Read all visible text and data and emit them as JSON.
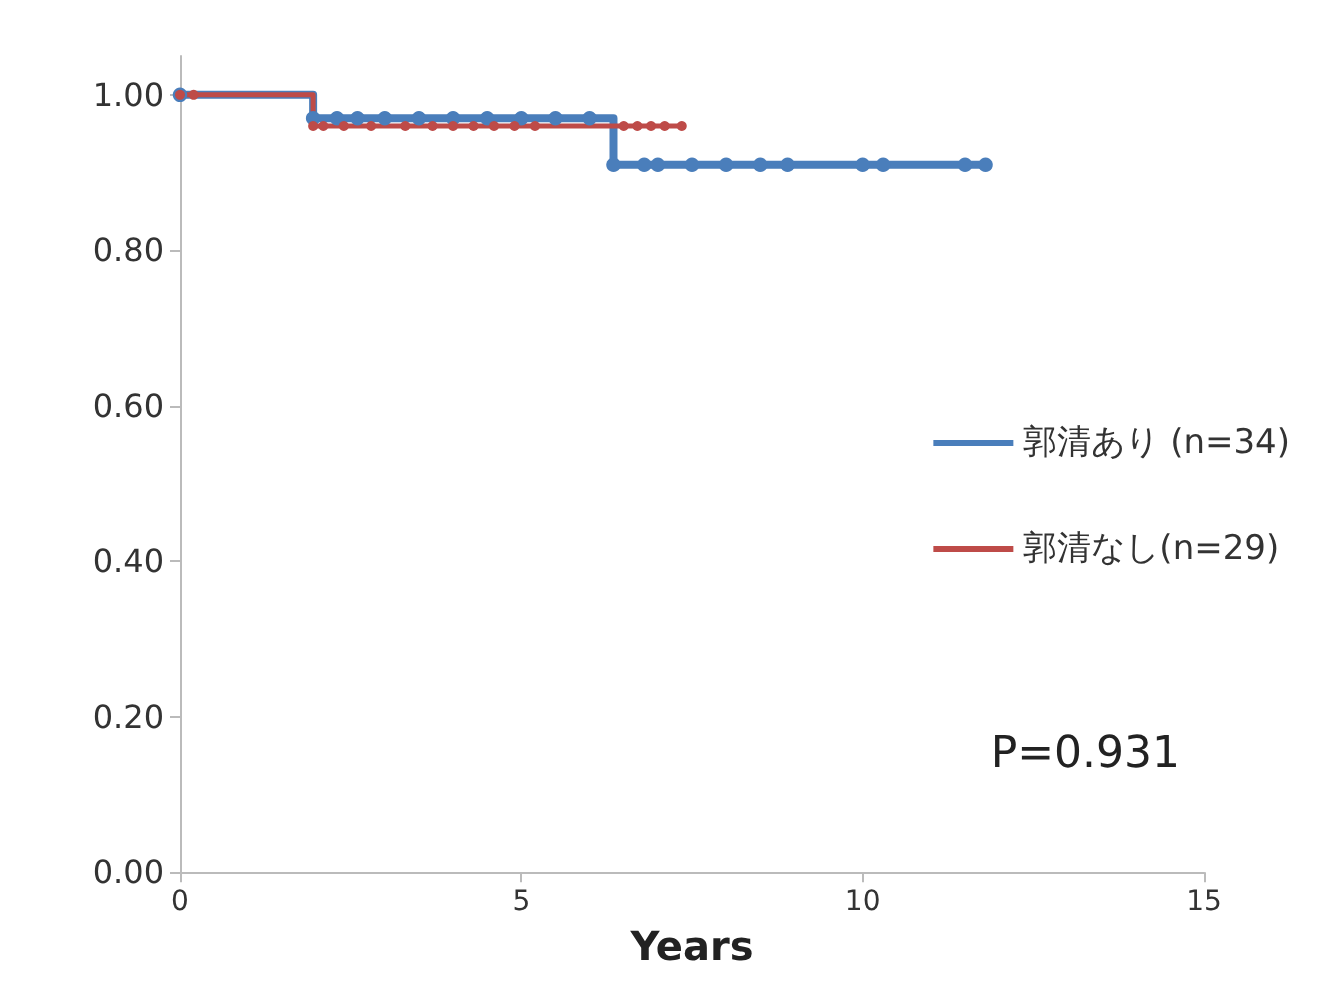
{
  "chart_data": {
    "type": "step",
    "xlabel": "Years",
    "annotations": [
      "P=0.931"
    ],
    "legend": "right",
    "grid": false,
    "marker": "circle",
    "line_style": "solid",
    "xlim": [
      0,
      15
    ],
    "xticks": [
      0,
      5,
      10,
      15
    ],
    "ylim": [
      0,
      1.05
    ],
    "yticks": [
      {
        "value": 0,
        "label": "0.00"
      },
      {
        "value": 0.2,
        "label": "0.20"
      },
      {
        "value": 0.4,
        "label": "0.40"
      },
      {
        "value": 0.6,
        "label": "0.60"
      },
      {
        "value": 0.8,
        "label": "0.80"
      },
      {
        "value": 1,
        "label": "1.00"
      }
    ],
    "series": [
      {
        "name": "郭清あり (n=34)",
        "color": "#4a7ebb",
        "x": [
          0,
          1.95,
          2.3,
          2.6,
          3.0,
          3.5,
          4.0,
          4.5,
          5.0,
          5.5,
          6.0,
          6.35,
          6.8,
          7.0,
          7.5,
          8.0,
          8.5,
          8.9,
          10.0,
          10.3,
          11.5,
          11.8
        ],
        "values": [
          1,
          0.97,
          0.97,
          0.97,
          0.97,
          0.97,
          0.97,
          0.97,
          0.97,
          0.97,
          0.97,
          0.91,
          0.91,
          0.91,
          0.91,
          0.91,
          0.91,
          0.91,
          0.91,
          0.91,
          0.91,
          0.91
        ]
      },
      {
        "name": "郭清なし(n=29)",
        "color": "#be4b48",
        "x": [
          0,
          0.2,
          1.95,
          2.1,
          2.4,
          2.8,
          3.3,
          3.7,
          4.0,
          4.3,
          4.6,
          4.9,
          5.2,
          6.5,
          6.7,
          6.9,
          7.1,
          7.35
        ],
        "values": [
          1,
          1,
          0.96,
          0.96,
          0.96,
          0.96,
          0.96,
          0.96,
          0.96,
          0.96,
          0.96,
          0.96,
          0.96,
          0.96,
          0.96,
          0.96,
          0.96,
          0.96
        ]
      }
    ]
  }
}
